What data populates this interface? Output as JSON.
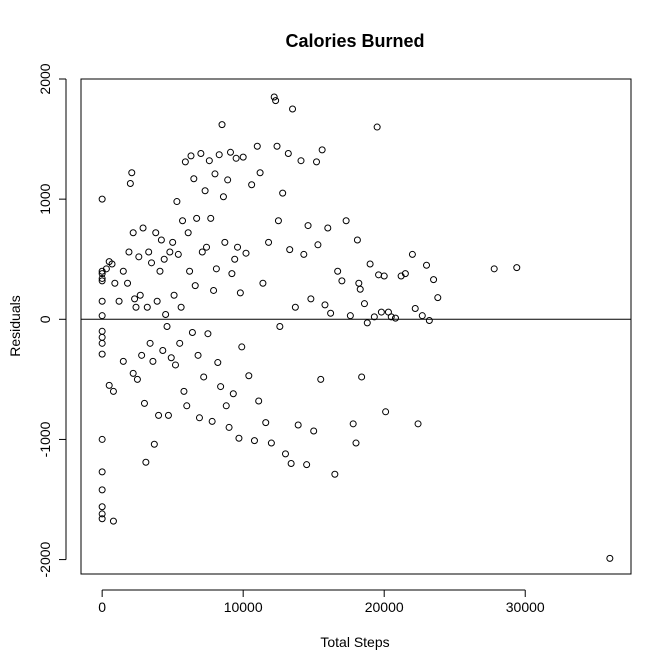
{
  "chart_data": {
    "type": "scatter",
    "title": "Calories Burned",
    "xlabel": "Total Steps",
    "ylabel": "Residuals",
    "xlim": [
      -1500,
      37500
    ],
    "ylim": [
      -2120,
      2000
    ],
    "xticks": [
      0,
      10000,
      20000,
      30000
    ],
    "yticks": [
      -2000,
      -1000,
      0,
      1000,
      2000
    ],
    "reference_line": {
      "y": 0
    },
    "marker": "open-circle",
    "color": "#000000",
    "series": [
      {
        "points": [
          [
            0,
            1000
          ],
          [
            0,
            400
          ],
          [
            0,
            380
          ],
          [
            0,
            340
          ],
          [
            0,
            320
          ],
          [
            0,
            150
          ],
          [
            0,
            30
          ],
          [
            0,
            -100
          ],
          [
            0,
            -150
          ],
          [
            0,
            -200
          ],
          [
            0,
            -290
          ],
          [
            0,
            -1000
          ],
          [
            0,
            -1270
          ],
          [
            0,
            -1420
          ],
          [
            0,
            -1560
          ],
          [
            0,
            -1620
          ],
          [
            0,
            -1660
          ],
          [
            300,
            420
          ],
          [
            500,
            480
          ],
          [
            700,
            460
          ],
          [
            900,
            300
          ],
          [
            500,
            -550
          ],
          [
            800,
            -600
          ],
          [
            800,
            -1680
          ],
          [
            1200,
            150
          ],
          [
            1500,
            400
          ],
          [
            1500,
            -350
          ],
          [
            1800,
            300
          ],
          [
            1900,
            560
          ],
          [
            2000,
            1130
          ],
          [
            2100,
            1220
          ],
          [
            2200,
            -450
          ],
          [
            2200,
            720
          ],
          [
            2300,
            170
          ],
          [
            2400,
            100
          ],
          [
            2500,
            -500
          ],
          [
            2600,
            520
          ],
          [
            2700,
            200
          ],
          [
            2800,
            -300
          ],
          [
            2900,
            760
          ],
          [
            3000,
            -700
          ],
          [
            3100,
            -1190
          ],
          [
            3200,
            100
          ],
          [
            3300,
            560
          ],
          [
            3400,
            -200
          ],
          [
            3500,
            470
          ],
          [
            3600,
            -350
          ],
          [
            3700,
            -1040
          ],
          [
            3800,
            720
          ],
          [
            3900,
            150
          ],
          [
            4000,
            -800
          ],
          [
            4100,
            400
          ],
          [
            4200,
            660
          ],
          [
            4300,
            -260
          ],
          [
            4400,
            500
          ],
          [
            4500,
            40
          ],
          [
            4600,
            -60
          ],
          [
            4700,
            -800
          ],
          [
            4800,
            560
          ],
          [
            4900,
            -320
          ],
          [
            5000,
            640
          ],
          [
            5100,
            200
          ],
          [
            5200,
            -380
          ],
          [
            5300,
            980
          ],
          [
            5400,
            540
          ],
          [
            5500,
            -200
          ],
          [
            5600,
            100
          ],
          [
            5700,
            820
          ],
          [
            5800,
            -600
          ],
          [
            5900,
            1310
          ],
          [
            6000,
            -720
          ],
          [
            6100,
            720
          ],
          [
            6200,
            400
          ],
          [
            6300,
            1360
          ],
          [
            6400,
            -110
          ],
          [
            6500,
            1170
          ],
          [
            6600,
            280
          ],
          [
            6700,
            840
          ],
          [
            6800,
            -300
          ],
          [
            6900,
            -820
          ],
          [
            7000,
            1380
          ],
          [
            7100,
            560
          ],
          [
            7200,
            -480
          ],
          [
            7300,
            1070
          ],
          [
            7400,
            600
          ],
          [
            7500,
            -120
          ],
          [
            7600,
            1320
          ],
          [
            7700,
            840
          ],
          [
            7800,
            -850
          ],
          [
            7900,
            240
          ],
          [
            8000,
            1210
          ],
          [
            8100,
            420
          ],
          [
            8200,
            -360
          ],
          [
            8300,
            1370
          ],
          [
            8400,
            -560
          ],
          [
            8500,
            1620
          ],
          [
            8600,
            1020
          ],
          [
            8700,
            640
          ],
          [
            8800,
            -720
          ],
          [
            8900,
            1160
          ],
          [
            9000,
            -900
          ],
          [
            9100,
            1390
          ],
          [
            9200,
            380
          ],
          [
            9300,
            -620
          ],
          [
            9400,
            500
          ],
          [
            9500,
            1340
          ],
          [
            9600,
            600
          ],
          [
            9700,
            -990
          ],
          [
            9800,
            220
          ],
          [
            9900,
            -230
          ],
          [
            10000,
            1350
          ],
          [
            10200,
            550
          ],
          [
            10400,
            -470
          ],
          [
            10600,
            1120
          ],
          [
            10800,
            -1010
          ],
          [
            11000,
            1440
          ],
          [
            11100,
            -680
          ],
          [
            11200,
            1220
          ],
          [
            11400,
            300
          ],
          [
            11600,
            -860
          ],
          [
            11800,
            640
          ],
          [
            12000,
            -1030
          ],
          [
            12200,
            1850
          ],
          [
            12300,
            1820
          ],
          [
            12400,
            1440
          ],
          [
            12500,
            820
          ],
          [
            12600,
            -60
          ],
          [
            12800,
            1050
          ],
          [
            13000,
            -1120
          ],
          [
            13200,
            1380
          ],
          [
            13300,
            580
          ],
          [
            13400,
            -1200
          ],
          [
            13500,
            1750
          ],
          [
            13700,
            100
          ],
          [
            13900,
            -880
          ],
          [
            14100,
            1320
          ],
          [
            14300,
            540
          ],
          [
            14500,
            -1210
          ],
          [
            14600,
            780
          ],
          [
            14800,
            170
          ],
          [
            15000,
            -930
          ],
          [
            15200,
            1310
          ],
          [
            15300,
            620
          ],
          [
            15500,
            -500
          ],
          [
            15600,
            1410
          ],
          [
            15800,
            120
          ],
          [
            16000,
            760
          ],
          [
            16200,
            50
          ],
          [
            16500,
            -1290
          ],
          [
            16700,
            400
          ],
          [
            17000,
            320
          ],
          [
            17300,
            820
          ],
          [
            17600,
            30
          ],
          [
            17800,
            -870
          ],
          [
            18000,
            -1030
          ],
          [
            18100,
            660
          ],
          [
            18200,
            300
          ],
          [
            18300,
            250
          ],
          [
            18400,
            -480
          ],
          [
            18600,
            130
          ],
          [
            18800,
            -30
          ],
          [
            19000,
            460
          ],
          [
            19300,
            20
          ],
          [
            19500,
            1600
          ],
          [
            19600,
            370
          ],
          [
            19800,
            60
          ],
          [
            20000,
            360
          ],
          [
            20100,
            -770
          ],
          [
            20300,
            60
          ],
          [
            20500,
            20
          ],
          [
            20800,
            10
          ],
          [
            21200,
            360
          ],
          [
            21500,
            380
          ],
          [
            22000,
            540
          ],
          [
            22200,
            90
          ],
          [
            22400,
            -870
          ],
          [
            22700,
            30
          ],
          [
            23000,
            450
          ],
          [
            23200,
            -10
          ],
          [
            23500,
            330
          ],
          [
            23800,
            180
          ],
          [
            27800,
            420
          ],
          [
            29400,
            430
          ],
          [
            36000,
            -1990
          ]
        ]
      }
    ]
  }
}
